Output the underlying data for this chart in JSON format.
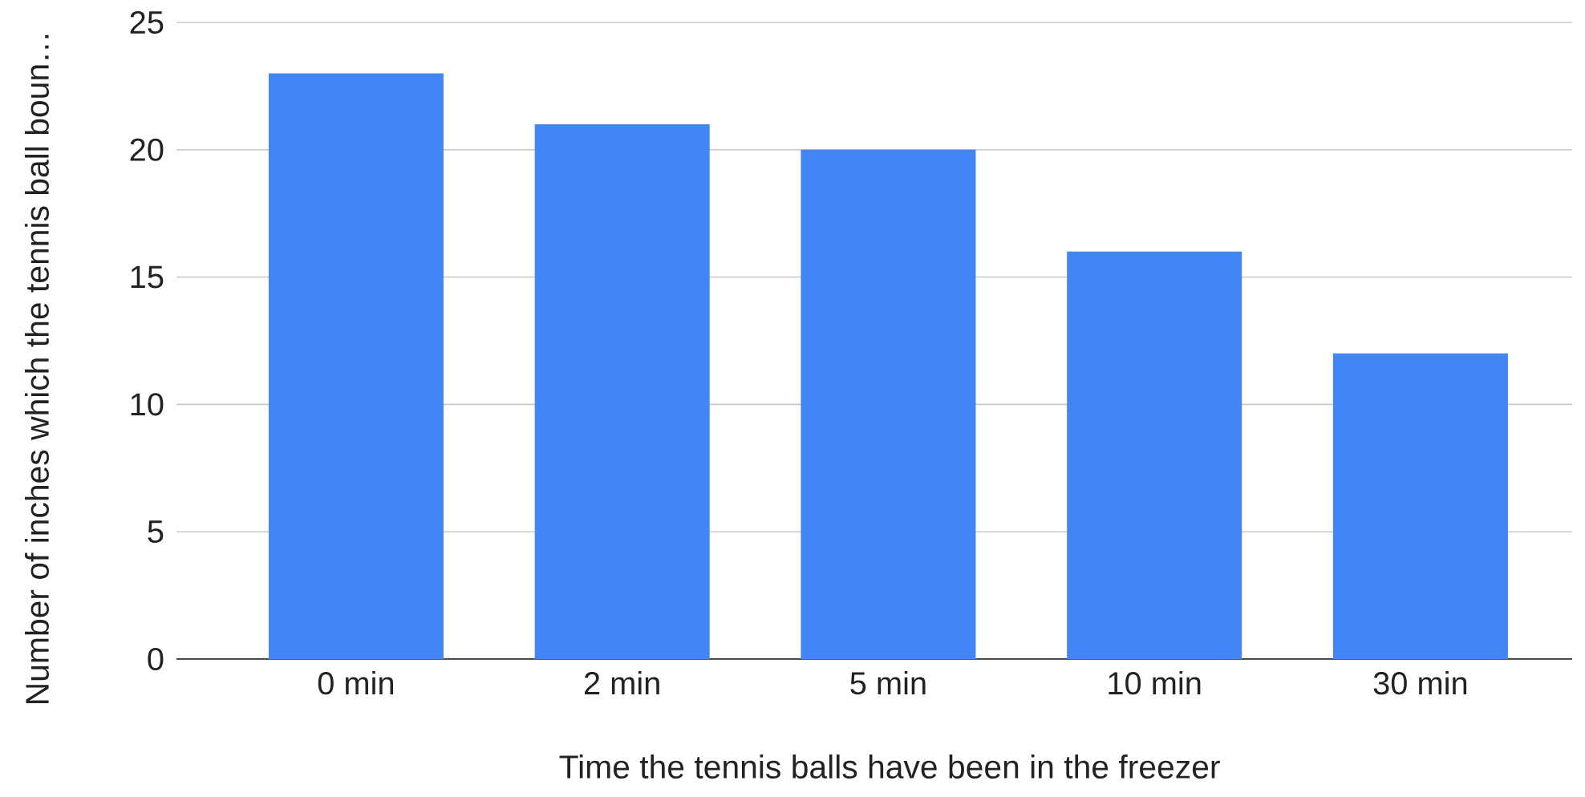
{
  "chart_data": {
    "type": "bar",
    "xlabel": "Time the tennis balls have been in the freezer",
    "ylabel": "Number of inches which the tennis ball boun…",
    "categories": [
      "0 min",
      "2 min",
      "5 min",
      "10 min",
      "30 min"
    ],
    "values": [
      23,
      21,
      20,
      16,
      12
    ],
    "color": "#4285f4",
    "ylim": [
      0,
      25
    ],
    "yticks": [
      0,
      5,
      10,
      15,
      20,
      25
    ],
    "grid": "y"
  }
}
